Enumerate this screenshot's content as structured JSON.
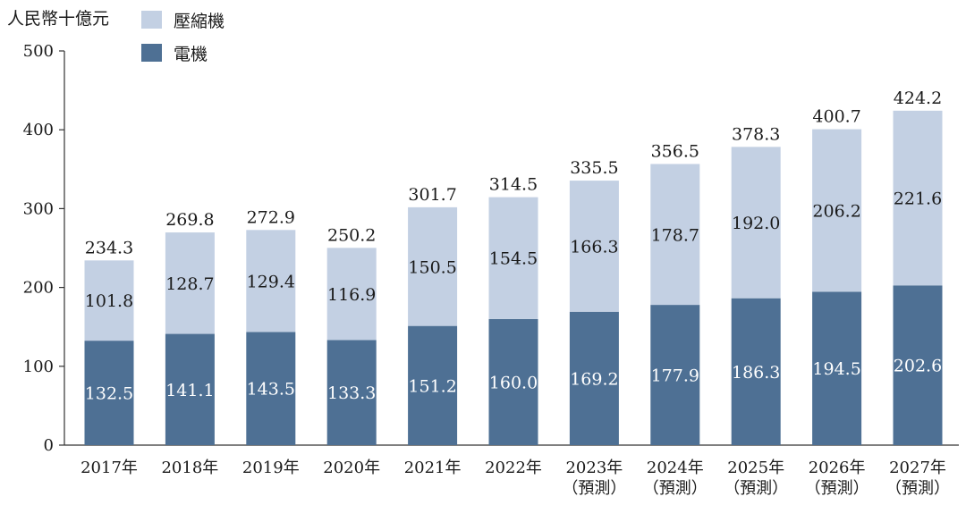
{
  "chart_data": {
    "type": "bar",
    "stacked": true,
    "unit_label": "人民幣十億元",
    "categories": [
      [
        "2017年"
      ],
      [
        "2018年"
      ],
      [
        "2019年"
      ],
      [
        "2020年"
      ],
      [
        "2021年"
      ],
      [
        "2022年"
      ],
      [
        "2023年",
        "（預測）"
      ],
      [
        "2024年",
        "（預測）"
      ],
      [
        "2025年",
        "（預測）"
      ],
      [
        "2026年",
        "（預測）"
      ],
      [
        "2027年",
        "（預測）"
      ]
    ],
    "series": [
      {
        "name": "電機",
        "color": "#4e7094",
        "label_color": "#ffffff",
        "values": [
          132.5,
          141.1,
          143.5,
          133.3,
          151.2,
          160.0,
          169.2,
          177.9,
          186.3,
          194.5,
          202.6
        ]
      },
      {
        "name": "壓縮機",
        "color": "#c3d0e3",
        "label_color": "#1a1a1a",
        "values": [
          101.8,
          128.7,
          129.4,
          116.9,
          150.5,
          154.5,
          166.3,
          178.7,
          192.0,
          206.2,
          221.6
        ]
      }
    ],
    "totals": [
      234.3,
      269.8,
      272.9,
      250.2,
      301.7,
      314.5,
      335.5,
      356.5,
      378.3,
      400.7,
      424.2
    ],
    "ylim": [
      0,
      500
    ],
    "yticks": [
      0,
      100,
      200,
      300,
      400,
      500
    ],
    "legend": [
      {
        "name": "壓縮機",
        "color": "#c3d0e3"
      },
      {
        "name": "電機",
        "color": "#4e7094"
      }
    ],
    "legend_position": "top-left",
    "grid": false
  }
}
